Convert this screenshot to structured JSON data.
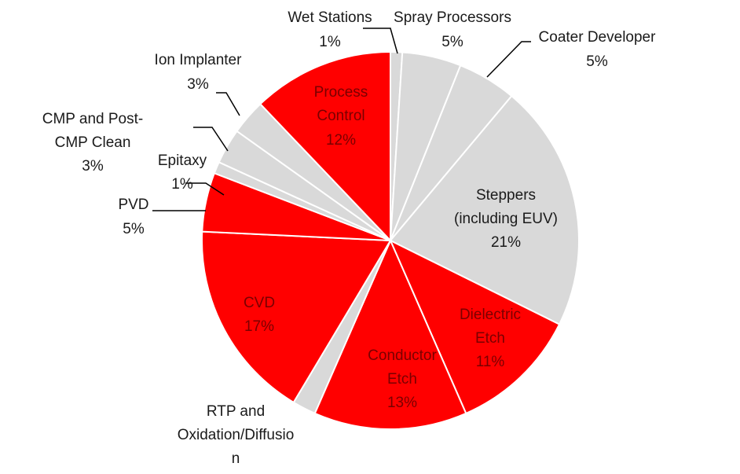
{
  "chart_data": {
    "type": "pie",
    "title": "",
    "colors": {
      "highlight": "#ff0000",
      "other": "#d9d9d9",
      "label_inside_highlight": "#7a0000",
      "label_inside_other": "#1a1a1a",
      "label_outside": "#1a1a1a",
      "leader": "#000000",
      "border": "#ffffff"
    },
    "start_angle_deg": 0,
    "direction": "clockwise",
    "slices": [
      {
        "name": "Wet Stations",
        "value": 1,
        "label": "1%",
        "highlight": false,
        "label_pos": "outside"
      },
      {
        "name": "Spray Processors",
        "value": 5,
        "label": "5%",
        "highlight": false,
        "label_pos": "outside"
      },
      {
        "name": "Coater Developer",
        "value": 5,
        "label": "5%",
        "highlight": false,
        "label_pos": "outside"
      },
      {
        "name": "Steppers (including EUV)",
        "value": 21,
        "label": "21%",
        "highlight": false,
        "label_pos": "inside"
      },
      {
        "name": "Dielectric Etch",
        "value": 11,
        "label": "11%",
        "highlight": true,
        "label_pos": "inside"
      },
      {
        "name": "Conductor Etch",
        "value": 13,
        "label": "13%",
        "highlight": true,
        "label_pos": "inside"
      },
      {
        "name": "RTP and Oxidation/Diffusion",
        "value": 2,
        "label": "",
        "highlight": false,
        "label_pos": "outside"
      },
      {
        "name": "CVD",
        "value": 17,
        "label": "17%",
        "highlight": true,
        "label_pos": "inside"
      },
      {
        "name": "PVD",
        "value": 5,
        "label": "5%",
        "highlight": true,
        "label_pos": "outside"
      },
      {
        "name": "Epitaxy",
        "value": 1,
        "label": "1%",
        "highlight": false,
        "label_pos": "outside"
      },
      {
        "name": "CMP and Post-CMP Clean",
        "value": 3,
        "label": "3%",
        "highlight": false,
        "label_pos": "outside"
      },
      {
        "name": "Ion Implanter",
        "value": 3,
        "label": "3%",
        "highlight": false,
        "label_pos": "outside"
      },
      {
        "name": "Process Control",
        "value": 12,
        "label": "12%",
        "highlight": true,
        "label_pos": "inside"
      }
    ]
  }
}
